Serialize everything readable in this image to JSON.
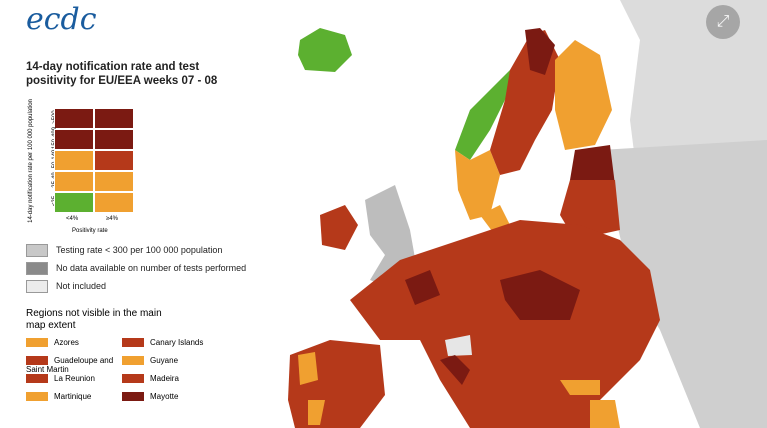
{
  "header": {
    "logo": "ecdc",
    "title": "14-day notification rate and test positivity for EU/EEA weeks 07 - 08"
  },
  "matrix": {
    "y_label": "14-day notification rate per 100 000 population",
    "rows": [
      "≥500",
      "150-499",
      "50-149",
      "25-49",
      "<25"
    ],
    "columns": [
      "<4%",
      "≥4%"
    ],
    "x_label": "Positivity rate"
  },
  "legend": [
    "Testing rate < 300 per 100 000 population",
    "No data available on number of tests performed",
    "Not included"
  ],
  "regions": {
    "title": "Regions not visible in the main map extent",
    "items": [
      "Azores",
      "Canary Islands",
      "Guadeloupe and Saint Martin",
      "Guyane",
      "La Reunion",
      "Madeira",
      "Martinique",
      "Mayotte"
    ]
  }
}
